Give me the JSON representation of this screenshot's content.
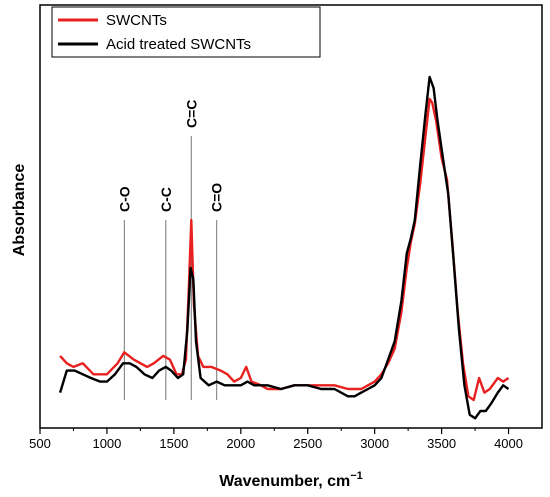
{
  "chart_data": {
    "type": "line",
    "xlabel": "Wavenumber, cm",
    "xlabel_sup": "−1",
    "ylabel": "Absorbance",
    "xlim": [
      500,
      4250
    ],
    "ylim": [
      0,
      1
    ],
    "xticks": [
      500,
      1000,
      1500,
      2000,
      2500,
      3000,
      3500,
      4000
    ],
    "xtick_labels": [
      "500",
      "1000",
      "1500",
      "2000",
      "2500",
      "3000",
      "3500",
      "4000"
    ],
    "yticks_shown": false,
    "legend_position": "top-left",
    "grid": false,
    "annotations": [
      {
        "label": "C-O",
        "x": 1130
      },
      {
        "label": "C-C",
        "x": 1440
      },
      {
        "label": "C=C",
        "x": 1630
      },
      {
        "label": "C=O",
        "x": 1820
      }
    ],
    "series": [
      {
        "name": "SWCNTs",
        "color": "#e8201f",
        "points": [
          [
            650,
            0.18
          ],
          [
            700,
            0.16
          ],
          [
            750,
            0.15
          ],
          [
            820,
            0.16
          ],
          [
            900,
            0.13
          ],
          [
            1000,
            0.13
          ],
          [
            1080,
            0.16
          ],
          [
            1130,
            0.19
          ],
          [
            1200,
            0.17
          ],
          [
            1300,
            0.15
          ],
          [
            1350,
            0.16
          ],
          [
            1420,
            0.18
          ],
          [
            1470,
            0.17
          ],
          [
            1520,
            0.13
          ],
          [
            1560,
            0.13
          ],
          [
            1590,
            0.17
          ],
          [
            1610,
            0.35
          ],
          [
            1630,
            0.55
          ],
          [
            1650,
            0.32
          ],
          [
            1680,
            0.18
          ],
          [
            1720,
            0.15
          ],
          [
            1780,
            0.15
          ],
          [
            1850,
            0.14
          ],
          [
            1900,
            0.13
          ],
          [
            1950,
            0.11
          ],
          [
            2000,
            0.12
          ],
          [
            2040,
            0.15
          ],
          [
            2080,
            0.11
          ],
          [
            2150,
            0.1
          ],
          [
            2200,
            0.09
          ],
          [
            2300,
            0.09
          ],
          [
            2400,
            0.1
          ],
          [
            2500,
            0.1
          ],
          [
            2600,
            0.1
          ],
          [
            2700,
            0.1
          ],
          [
            2800,
            0.09
          ],
          [
            2900,
            0.09
          ],
          [
            2950,
            0.1
          ],
          [
            3000,
            0.11
          ],
          [
            3050,
            0.13
          ],
          [
            3100,
            0.16
          ],
          [
            3150,
            0.2
          ],
          [
            3200,
            0.3
          ],
          [
            3240,
            0.42
          ],
          [
            3270,
            0.49
          ],
          [
            3300,
            0.54
          ],
          [
            3340,
            0.65
          ],
          [
            3380,
            0.78
          ],
          [
            3410,
            0.88
          ],
          [
            3430,
            0.87
          ],
          [
            3460,
            0.82
          ],
          [
            3500,
            0.72
          ],
          [
            3540,
            0.66
          ],
          [
            3580,
            0.49
          ],
          [
            3620,
            0.3
          ],
          [
            3660,
            0.16
          ],
          [
            3700,
            0.07
          ],
          [
            3740,
            0.06
          ],
          [
            3780,
            0.12
          ],
          [
            3820,
            0.08
          ],
          [
            3860,
            0.09
          ],
          [
            3920,
            0.12
          ],
          [
            3960,
            0.11
          ],
          [
            4000,
            0.12
          ]
        ]
      },
      {
        "name": "Acid treated SWCNTs",
        "color": "#000000",
        "points": [
          [
            650,
            0.08
          ],
          [
            700,
            0.14
          ],
          [
            760,
            0.14
          ],
          [
            820,
            0.13
          ],
          [
            880,
            0.12
          ],
          [
            950,
            0.11
          ],
          [
            1000,
            0.11
          ],
          [
            1060,
            0.13
          ],
          [
            1120,
            0.16
          ],
          [
            1170,
            0.16
          ],
          [
            1220,
            0.15
          ],
          [
            1280,
            0.13
          ],
          [
            1340,
            0.12
          ],
          [
            1390,
            0.14
          ],
          [
            1440,
            0.15
          ],
          [
            1480,
            0.14
          ],
          [
            1530,
            0.12
          ],
          [
            1570,
            0.13
          ],
          [
            1600,
            0.25
          ],
          [
            1625,
            0.42
          ],
          [
            1645,
            0.39
          ],
          [
            1665,
            0.22
          ],
          [
            1700,
            0.12
          ],
          [
            1760,
            0.1
          ],
          [
            1820,
            0.11
          ],
          [
            1880,
            0.1
          ],
          [
            1950,
            0.1
          ],
          [
            2000,
            0.1
          ],
          [
            2050,
            0.11
          ],
          [
            2100,
            0.1
          ],
          [
            2200,
            0.1
          ],
          [
            2300,
            0.09
          ],
          [
            2400,
            0.1
          ],
          [
            2500,
            0.1
          ],
          [
            2600,
            0.09
          ],
          [
            2700,
            0.09
          ],
          [
            2800,
            0.07
          ],
          [
            2850,
            0.07
          ],
          [
            2900,
            0.08
          ],
          [
            2950,
            0.09
          ],
          [
            3000,
            0.1
          ],
          [
            3050,
            0.12
          ],
          [
            3100,
            0.17
          ],
          [
            3150,
            0.22
          ],
          [
            3200,
            0.33
          ],
          [
            3240,
            0.46
          ],
          [
            3270,
            0.5
          ],
          [
            3300,
            0.55
          ],
          [
            3340,
            0.7
          ],
          [
            3380,
            0.84
          ],
          [
            3410,
            0.94
          ],
          [
            3440,
            0.91
          ],
          [
            3470,
            0.82
          ],
          [
            3510,
            0.72
          ],
          [
            3550,
            0.62
          ],
          [
            3590,
            0.44
          ],
          [
            3630,
            0.25
          ],
          [
            3670,
            0.1
          ],
          [
            3710,
            0.02
          ],
          [
            3750,
            0.01
          ],
          [
            3790,
            0.03
          ],
          [
            3830,
            0.03
          ],
          [
            3870,
            0.05
          ],
          [
            3920,
            0.08
          ],
          [
            3960,
            0.1
          ],
          [
            4000,
            0.09
          ]
        ]
      }
    ]
  }
}
